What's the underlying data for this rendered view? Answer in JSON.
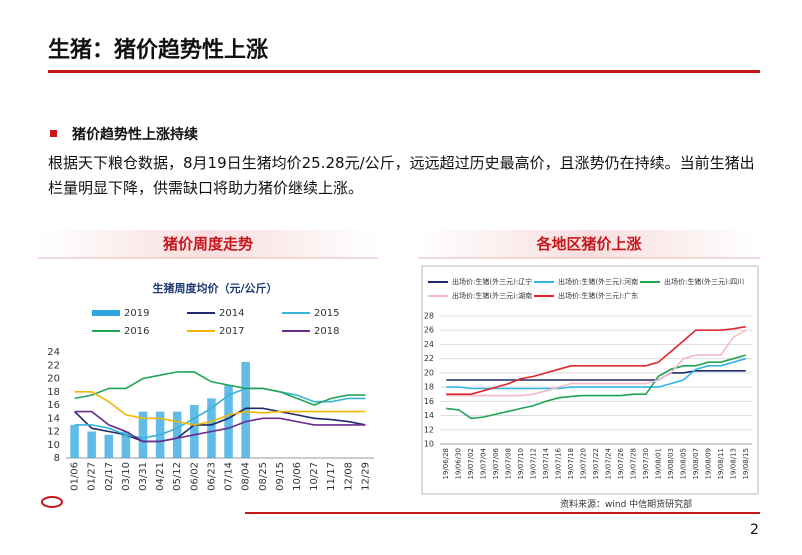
{
  "header": {
    "title": "生猪：猪价趋势性上涨"
  },
  "section": {
    "heading": "猪价趋势性上涨持续",
    "paragraph": "根据天下粮仓数据，8月19日生猪均价25.28元/公斤，远远超过历史最高价，且涨势仍在持续。当前生猪出栏量明显下降，供需缺口将助力猪价继续上涨。"
  },
  "panels": [
    {
      "title": "猪价周度走势"
    },
    {
      "title": "各地区猪价上涨"
    }
  ],
  "source": "资料来源：wind 中信期货研究部",
  "page_number": "2",
  "chart_data": [
    {
      "type": "combo",
      "title": "生猪周度均价（元/公斤）",
      "categories": [
        "01/06",
        "01/27",
        "02/17",
        "03/10",
        "03/31",
        "04/21",
        "05/12",
        "06/02",
        "06/23",
        "07/14",
        "08/04",
        "08/25",
        "09/15",
        "10/06",
        "10/27",
        "11/17",
        "12/08",
        "12/29"
      ],
      "ylim": [
        8,
        24
      ],
      "yticks": [
        8,
        10,
        12,
        14,
        16,
        18,
        20,
        22,
        24
      ],
      "grid": false,
      "series": [
        {
          "name": "2019",
          "type": "bar",
          "color": "#2ea6e0",
          "values": [
            13,
            12,
            11.5,
            12,
            15,
            15,
            15,
            16,
            17,
            19,
            22.5,
            null,
            null,
            null,
            null,
            null,
            null,
            null
          ]
        },
        {
          "name": "2014",
          "type": "line",
          "color": "#1f2a6b",
          "values": [
            15,
            12.5,
            12,
            11.5,
            10.5,
            10.5,
            11,
            13,
            13,
            14,
            15.5,
            15.5,
            15,
            14.5,
            14,
            13.8,
            13.5,
            13
          ]
        },
        {
          "name": "2015",
          "type": "line",
          "color": "#35b4d8",
          "values": [
            13,
            13,
            12.5,
            11.5,
            11,
            11.5,
            12.5,
            14,
            15.5,
            17.5,
            18.5,
            18.5,
            18,
            17.5,
            16.5,
            16.5,
            17,
            17
          ]
        },
        {
          "name": "2016",
          "type": "line",
          "color": "#22a455",
          "values": [
            17,
            17.5,
            18.5,
            18.5,
            20,
            20.5,
            21,
            21,
            19.5,
            19,
            18.5,
            18.5,
            18,
            17,
            16,
            17,
            17.5,
            17.5
          ]
        },
        {
          "name": "2017",
          "type": "line",
          "color": "#f2b705",
          "values": [
            18,
            18,
            16.5,
            14.5,
            14,
            14,
            13.5,
            13,
            13.5,
            14.5,
            15,
            14.8,
            15,
            15,
            15,
            15,
            15,
            15
          ]
        },
        {
          "name": "2018",
          "type": "line",
          "color": "#6a2c8e",
          "values": [
            15,
            15,
            13,
            12,
            10.5,
            10.5,
            11,
            11.5,
            12,
            12.5,
            13.5,
            14,
            14,
            13.5,
            13,
            13,
            13,
            13
          ]
        }
      ]
    },
    {
      "type": "line",
      "categories": [
        "19/06/28",
        "19/06/30",
        "19/07/02",
        "19/07/04",
        "19/07/06",
        "19/07/08",
        "19/07/10",
        "19/07/12",
        "19/07/14",
        "19/07/16",
        "19/07/18",
        "19/07/20",
        "19/07/22",
        "19/07/24",
        "19/07/26",
        "19/07/28",
        "19/07/30",
        "19/08/01",
        "19/08/03",
        "19/08/05",
        "19/08/07",
        "19/08/09",
        "19/08/11",
        "19/08/13",
        "19/08/15"
      ],
      "ylim": [
        10,
        28
      ],
      "yticks": [
        10,
        12,
        14,
        16,
        18,
        20,
        22,
        24,
        26,
        28
      ],
      "grid": true,
      "series": [
        {
          "name": "出场价:生猪(外三元):辽宁",
          "color": "#1f2a6b",
          "values": [
            19,
            19,
            19,
            19,
            19,
            19,
            19,
            19,
            19,
            19,
            19,
            19,
            19,
            19,
            19,
            19,
            19,
            19,
            20,
            20,
            20.3,
            20.3,
            20.3,
            20.3,
            20.3
          ]
        },
        {
          "name": "出场价:生猪(外三元):河南",
          "color": "#35b4e8",
          "values": [
            18,
            18,
            17.8,
            17.8,
            17.8,
            17.8,
            17.8,
            17.8,
            17.8,
            17.8,
            18,
            18,
            18,
            18,
            18,
            18,
            18,
            18,
            18.5,
            19,
            20.5,
            21,
            21,
            21.5,
            22
          ]
        },
        {
          "name": "出场价:生猪(外三元):四川",
          "color": "#22a455",
          "values": [
            15,
            14.8,
            13.6,
            13.8,
            14.2,
            14.6,
            15,
            15.4,
            16,
            16.5,
            16.7,
            16.8,
            16.8,
            16.8,
            16.8,
            17,
            17,
            19.5,
            20.5,
            21,
            21,
            21.5,
            21.5,
            22,
            22.5
          ]
        },
        {
          "name": "出场价:生猪(外三元):湖南",
          "color": "#f4b8c8",
          "values": [
            16.8,
            16.8,
            16.8,
            16.8,
            16.8,
            16.8,
            16.8,
            17,
            17.5,
            18,
            18.5,
            18.5,
            18.5,
            18.5,
            18.5,
            18.5,
            18.5,
            19,
            20,
            22,
            22.5,
            22.5,
            22.5,
            25,
            26
          ]
        },
        {
          "name": "出场价:生猪(外三元):广东",
          "color": "#e0262b",
          "values": [
            17,
            17,
            17,
            17.5,
            18,
            18.5,
            19.2,
            19.5,
            20,
            20.5,
            21,
            21,
            21,
            21,
            21,
            21,
            21,
            21.5,
            23,
            24.5,
            26,
            26,
            26,
            26.2,
            26.5
          ]
        }
      ]
    }
  ]
}
